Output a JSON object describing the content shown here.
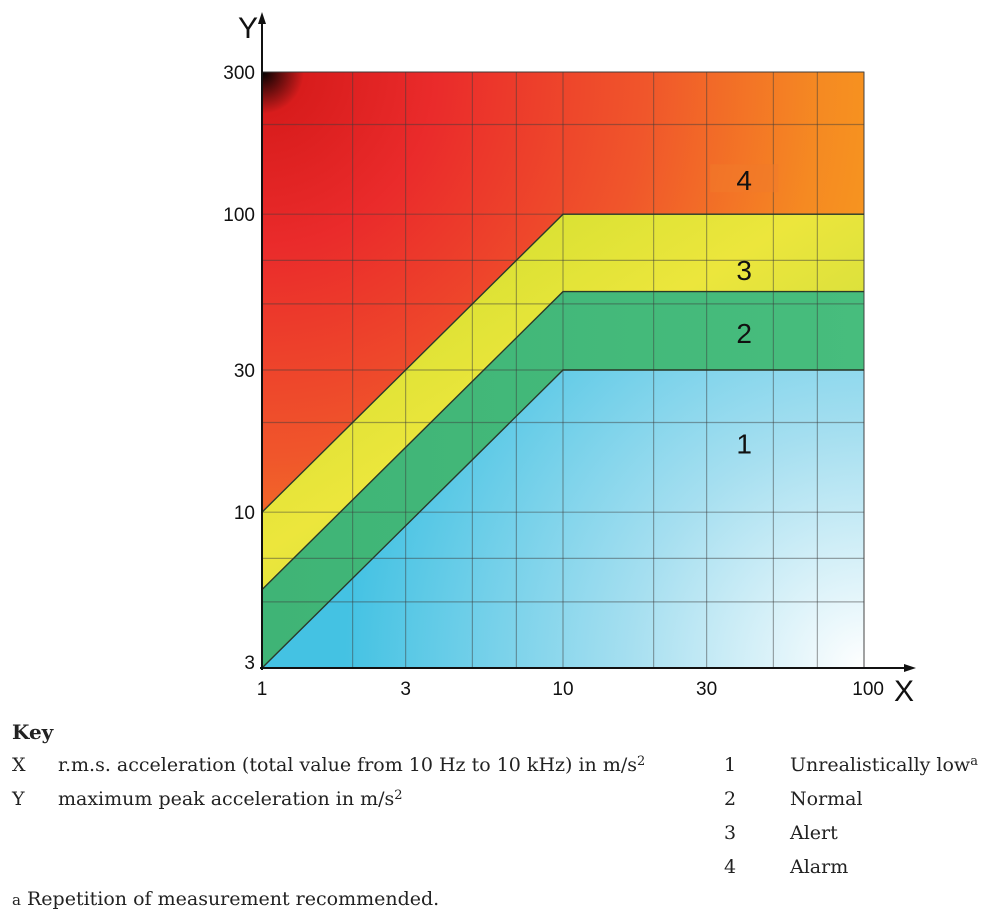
{
  "chart_data": {
    "type": "area",
    "scale": "log-log",
    "x_axis": {
      "label": "X",
      "range": [
        1,
        100
      ],
      "ticks": [
        "1",
        "3",
        "10",
        "30",
        "100"
      ]
    },
    "y_axis": {
      "label": "Y",
      "range": [
        3,
        300
      ],
      "ticks": [
        "3",
        "10",
        "30",
        "100",
        "300"
      ]
    },
    "grid": true,
    "boundaries": [
      {
        "between_zones": [
          "1",
          "2"
        ],
        "points": [
          [
            1,
            3
          ],
          [
            10,
            30
          ],
          [
            100,
            30
          ]
        ]
      },
      {
        "between_zones": [
          "2",
          "3"
        ],
        "points": [
          [
            1,
            5.5
          ],
          [
            10,
            55
          ],
          [
            100,
            55
          ]
        ]
      },
      {
        "between_zones": [
          "3",
          "4"
        ],
        "points": [
          [
            1,
            10
          ],
          [
            10,
            100
          ],
          [
            100,
            100
          ]
        ]
      }
    ],
    "zones": [
      {
        "label": "1",
        "name": "Unrealistically low",
        "color": "#48c4e2"
      },
      {
        "label": "2",
        "name": "Normal",
        "color": "#40b97a"
      },
      {
        "label": "3",
        "name": "Alert",
        "color": "#d6e23a"
      },
      {
        "label": "4",
        "name": "Alarm",
        "color": "#ea2a2a"
      }
    ]
  },
  "key": {
    "title": "Key",
    "axes": [
      {
        "symbol": "X",
        "text": "r.m.s. acceleration (total value from 10 Hz to 10 kHz) in m/s",
        "sup": "2"
      },
      {
        "symbol": "Y",
        "text": "maximum peak acceleration in m/s",
        "sup": "2"
      }
    ],
    "zones": [
      {
        "num": "1",
        "label": "Unrealistically low",
        "sup": "a"
      },
      {
        "num": "2",
        "label": "Normal",
        "sup": ""
      },
      {
        "num": "3",
        "label": "Alert",
        "sup": ""
      },
      {
        "num": "4",
        "label": "Alarm",
        "sup": ""
      }
    ]
  },
  "footnote": {
    "mark": "a",
    "text": " Repetition of measurement recommended."
  }
}
